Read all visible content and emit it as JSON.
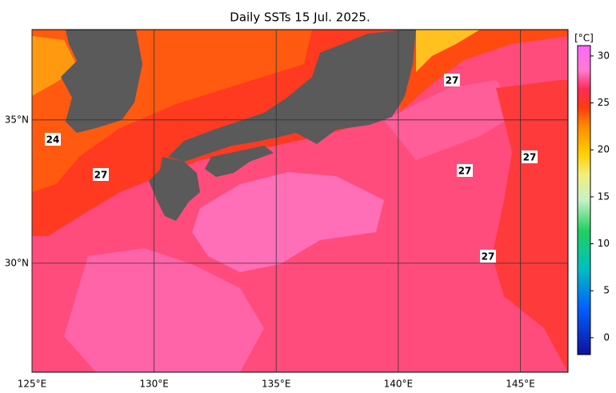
{
  "title": "Daily SSTs 15 Jul. 2025.",
  "map": {
    "xlim": [
      125,
      146.95
    ],
    "ylim": [
      26.2,
      38.15
    ],
    "xticks": [
      {
        "value": 125,
        "label": "125°E"
      },
      {
        "value": 130,
        "label": "130°E"
      },
      {
        "value": 135,
        "label": "135°E"
      },
      {
        "value": 140,
        "label": "140°E"
      },
      {
        "value": 145,
        "label": "145°E"
      }
    ],
    "yticks": [
      {
        "value": 30,
        "label": "30°N"
      },
      {
        "value": 35,
        "label": "35°N"
      }
    ],
    "contour_labels": [
      24,
      27,
      27,
      27,
      27,
      27
    ]
  },
  "colorbar": {
    "unit": "[°C]",
    "lim": [
      -1.8,
      31.1
    ],
    "ticks": [
      30,
      25,
      20,
      15,
      10,
      5,
      0
    ]
  }
}
